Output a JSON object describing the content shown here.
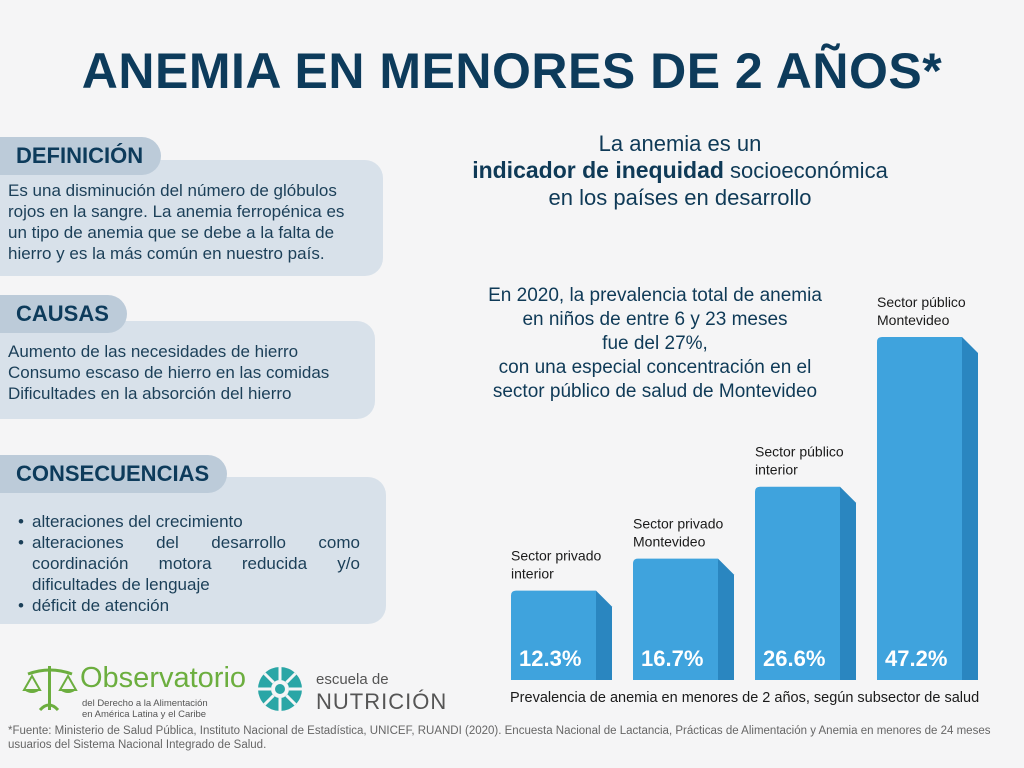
{
  "title": "ANEMIA EN MENORES DE 2 AÑOS*",
  "definicion": {
    "label": "DEFINICIÓN",
    "text": "Es una disminución del número de glóbulos rojos en la sangre. La anemia ferropénica es un tipo de anemia que se debe a la falta de hierro y es la más común en nuestro país."
  },
  "causas": {
    "label": "CAUSAS",
    "items": [
      "Aumento de las necesidades de hierro",
      "Consumo escaso de hierro en las comidas",
      "Dificultades en la absorción del hierro"
    ]
  },
  "consecuencias": {
    "label": "CONSECUENCIAS",
    "items": [
      "alteraciones del crecimiento",
      "alteraciones del desarrollo como coordinación motora reducida y/o dificultades de lenguaje",
      "déficit de atención"
    ]
  },
  "inequidad": {
    "line1": "La anemia es un",
    "bold": "indicador de inequidad",
    "rest": " socioeconómica",
    "line3": "en los países en desarrollo"
  },
  "prevalencia_text": [
    "En 2020, la prevalencia total de anemia",
    "en niños de entre 6 y 23 meses",
    "fue del 27%,",
    "con una especial concentración en el",
    "sector público de salud de Montevideo"
  ],
  "chart_data": {
    "type": "bar",
    "categories": [
      [
        "Sector privado",
        "interior"
      ],
      [
        "Sector privado",
        "Montevideo"
      ],
      [
        "Sector público",
        "interior"
      ],
      [
        "Sector público",
        "Montevideo"
      ]
    ],
    "values": [
      12.3,
      16.7,
      26.6,
      47.2
    ],
    "value_labels": [
      "12.3%",
      "16.7%",
      "26.6%",
      "47.2%"
    ],
    "title": "Prevalencia de anemia en menores de 2 años, según subsector de salud",
    "colors": {
      "front": "#3fa3dd",
      "side": "#2a86c0",
      "top": "#7ec4ee"
    }
  },
  "logos": {
    "observatorio": {
      "name": "Observatorio",
      "sub1": "del Derecho a la Alimentación",
      "sub2": "en América Latina y el Caribe"
    },
    "escuela": {
      "small": "escuela de",
      "big": "NUTRICIÓN"
    }
  },
  "footnote": "*Fuente: Ministerio de Salud Pública, Instituto Nacional de Estadística, UNICEF, RUANDI (2020). Encuesta Nacional de Lactancia, Prácticas de Alimentación y Anemia en menores de 24 meses usuarios del Sistema Nacional Integrado de Salud."
}
